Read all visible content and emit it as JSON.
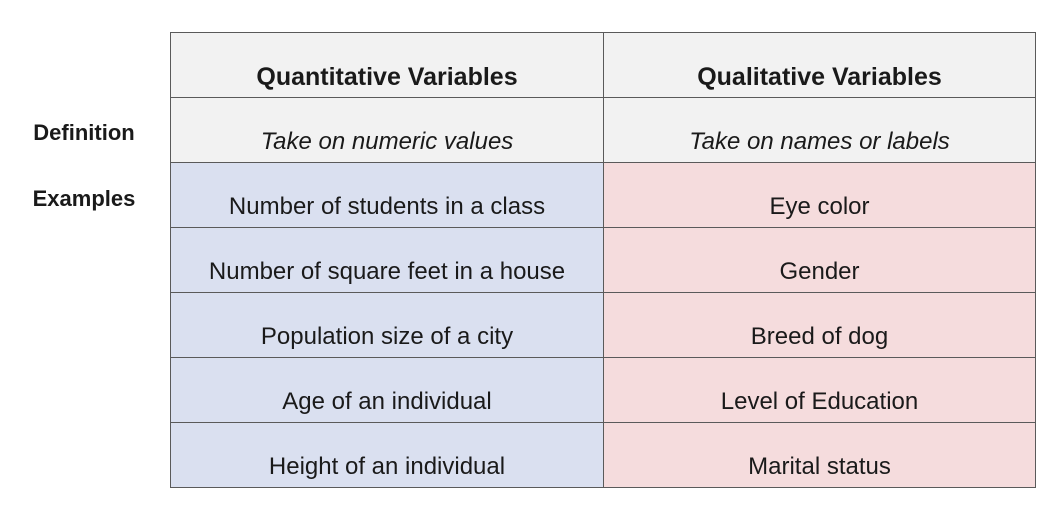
{
  "row_labels": {
    "definition": "Definition",
    "examples": "Examples"
  },
  "table": {
    "headers": [
      "Quantitative Variables",
      "Qualitative Variables"
    ],
    "definitions": [
      "Take on numeric values",
      "Take on names or labels"
    ],
    "examples": [
      [
        "Number of students in a class",
        "Eye color"
      ],
      [
        "Number of square feet in a house",
        "Gender"
      ],
      [
        "Population size of a city",
        "Breed of dog"
      ],
      [
        "Age of an individual",
        "Level of Education"
      ],
      [
        "Height of an individual",
        "Marital status"
      ]
    ]
  },
  "colors": {
    "header_bg": "#f2f2f2",
    "quantitative_bg": "#dae0f0",
    "qualitative_bg": "#f5dcdd",
    "border": "#5a5a5a"
  }
}
